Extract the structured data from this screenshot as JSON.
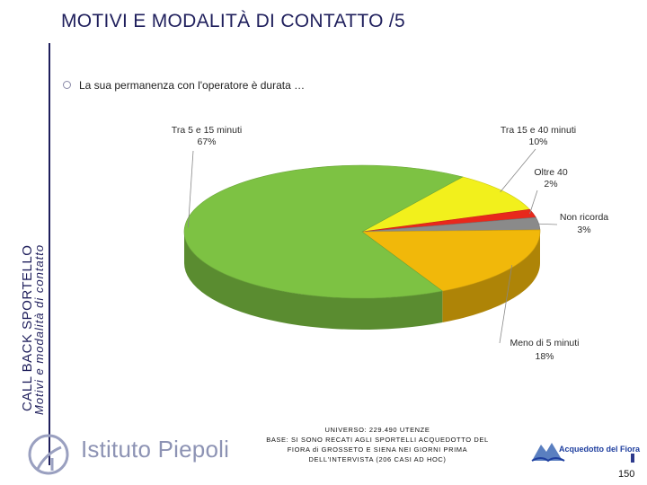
{
  "header": {
    "title": "MOTIVI E MODALITÀ DI CONTATTO /5",
    "side_title": "CALL BACK SPORTELLO",
    "side_subtitle": "Motivi e modalità di contatto"
  },
  "question": "La sua permanenza con l'operatore è durata …",
  "chart_data": {
    "type": "pie",
    "style": "3d",
    "slices": [
      {
        "name": "Tra 5 e 15 minuti",
        "value": 67,
        "label": "67%",
        "color": "#7dc243"
      },
      {
        "name": "Tra 15 e 40 minuti",
        "value": 10,
        "label": "10%",
        "color": "#f2f01c"
      },
      {
        "name": "Oltre 40",
        "value": 2,
        "label": "2%",
        "color": "#e8281c"
      },
      {
        "name": "Non ricorda",
        "value": 3,
        "label": "3%",
        "color": "#8a8a8a"
      },
      {
        "name": "Meno di  5 minuti",
        "value": 18,
        "label": "18%",
        "color": "#f1b80a"
      }
    ]
  },
  "footer": {
    "line1": "UNIVERSO: 229.490 UTENZE",
    "line2": "BASE: SI SONO RECATI AGLI SPORTELLI ACQUEDOTTO DEL",
    "line3": "FIORA di GROSSETO E SIENA NEI GIORNI PRIMA",
    "line4": "DELL'INTERVISTA (206 CASI AD HOC)"
  },
  "logos": {
    "piepoli": "Istituto Piepoli",
    "acquedotto": "Acquedotto del Fiora"
  },
  "page_number": "150"
}
